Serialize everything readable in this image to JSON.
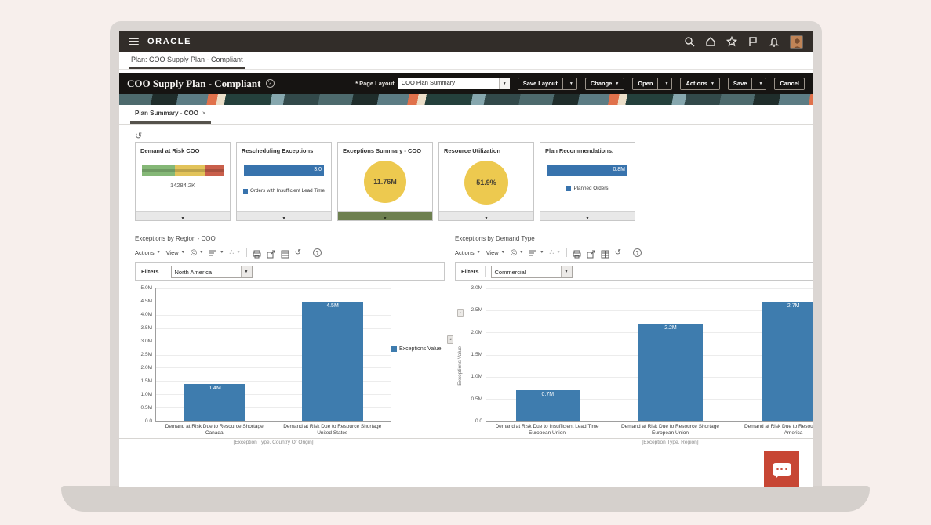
{
  "appbar": {
    "brand": "ORACLE",
    "icons": [
      "search",
      "home",
      "favorites",
      "flag",
      "notifications",
      "user-avatar"
    ]
  },
  "nav": {
    "plan_tab": "Plan: COO Supply Plan - Compliant"
  },
  "header": {
    "title": "COO Supply Plan - Compliant",
    "required_mark": "*",
    "page_layout_label": "Page Layout",
    "page_layout_value": "COO Plan Summary",
    "save_layout": "Save Layout",
    "change": "Change",
    "open": "Open",
    "actions": "Actions",
    "save": "Save",
    "cancel": "Cancel"
  },
  "tabbar": {
    "active_tab": "Plan Summary - COO",
    "close_glyph": "×"
  },
  "kpis": {
    "cards": [
      {
        "title": "Demand at Risk COO",
        "value": "14284.2K",
        "segment_colors": [
          "#85b877",
          "#e2c35a",
          "#c95f4b"
        ],
        "segment_pcts": [
          40,
          37,
          23
        ]
      },
      {
        "title": "Rescheduling Exceptions",
        "value": "3.0",
        "legend": "Orders with Insufficient Lead Time"
      },
      {
        "title": "Exceptions Summary - COO",
        "value": "11.76M",
        "selected": true
      },
      {
        "title": "Resource Utilization",
        "value": "51.9%"
      },
      {
        "title": "Plan Recommendations.",
        "value": "0.8M",
        "legend": "Planned Orders"
      }
    ]
  },
  "panels": [
    {
      "title": "Exceptions by Region - COO",
      "toolbar": {
        "actions": "Actions",
        "view": "View"
      },
      "filters_label": "Filters",
      "filter_value": "North America"
    },
    {
      "title": "Exceptions by Demand Type",
      "toolbar": {
        "actions": "Actions",
        "view": "View"
      },
      "filters_label": "Filters",
      "filter_value": "Commercial"
    }
  ],
  "chart_data": [
    {
      "type": "bar",
      "title": "Exceptions by Region - COO",
      "categories": [
        "Demand at Risk Due to Resource Shortage Canada",
        "Demand at Risk Due to Resource Shortage United States"
      ],
      "values": [
        1400000,
        4500000
      ],
      "value_labels": [
        "1.4M",
        "4.5M"
      ],
      "ylim": [
        0,
        5000000
      ],
      "ytick_labels": [
        "0.0",
        "0.5M",
        "1.0M",
        "1.5M",
        "2.0M",
        "2.5M",
        "3.0M",
        "3.5M",
        "4.0M",
        "4.5M",
        "5.0M"
      ],
      "xlabel": "[Exception Type, Country Of Origin]",
      "ylabel": "",
      "legend": [
        "Exceptions Value"
      ],
      "legend_position": "right",
      "grid": true,
      "bar_color": "#3e7cae"
    },
    {
      "type": "bar",
      "title": "Exceptions by Demand Type",
      "categories": [
        "Demand at Risk Due to Insufficient Lead Time European Union",
        "Demand at Risk Due to Resource Shortage European Union",
        "Demand at Risk Due to Resource Shortage America"
      ],
      "values": [
        700000,
        2200000,
        2700000
      ],
      "value_labels": [
        "0.7M",
        "2.2M",
        "2.7M"
      ],
      "ylim": [
        0,
        3000000
      ],
      "ytick_labels": [
        "0.0",
        "0.5M",
        "1.0M",
        "1.5M",
        "2.0M",
        "2.5M",
        "3.0M"
      ],
      "xlabel": "[Exception Type, Region]",
      "ylabel": "Exceptions Value",
      "legend": [],
      "grid": true,
      "bar_color": "#3e7cae"
    }
  ]
}
